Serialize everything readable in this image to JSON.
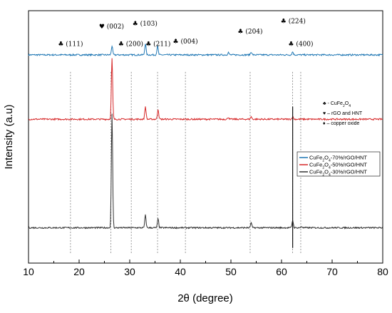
{
  "chart_data": {
    "type": "line",
    "xlabel": "2θ (degree)",
    "ylabel": "Intensity (a.u)",
    "xlim": [
      10,
      80
    ],
    "x_ticks": [
      "10",
      "20",
      "30",
      "40",
      "50",
      "60",
      "70",
      "80"
    ],
    "y_ticks": "none",
    "grid": false,
    "series": [
      {
        "name": "CuFe2O4-70%/rGO/HNT",
        "name_base": "CuFe",
        "name_sub1": "2",
        "name_mid": "O",
        "name_sub2": "4",
        "name_tail": "-70%/rGO/HNT",
        "color": "#1f77b4",
        "baseline": 0.825,
        "peaks": [
          {
            "x": 26.5,
            "h": 0.035
          },
          {
            "x": 33.1,
            "h": 0.045
          },
          {
            "x": 35.5,
            "h": 0.035
          },
          {
            "x": 49.5,
            "h": 0.01
          },
          {
            "x": 54.0,
            "h": 0.012
          },
          {
            "x": 62.2,
            "h": 0.012
          }
        ]
      },
      {
        "name": "CuFe2O4-50%/rGO/HNT",
        "name_base": "CuFe",
        "name_sub1": "2",
        "name_mid": "O",
        "name_sub2": "4",
        "name_tail": "-50%/rGO/HNT",
        "color": "#d62728",
        "baseline": 0.57,
        "peaks": [
          {
            "x": 26.5,
            "h": 0.24
          },
          {
            "x": 33.1,
            "h": 0.05
          },
          {
            "x": 35.6,
            "h": 0.04
          },
          {
            "x": 49.5,
            "h": 0.008
          },
          {
            "x": 54.0,
            "h": 0.01
          },
          {
            "x": 62.2,
            "h": 0.01
          }
        ]
      },
      {
        "name": "CuFe2O4-30%/rGO/HNT",
        "name_base": "CuFe",
        "name_sub1": "2",
        "name_mid": "O",
        "name_sub2": "4",
        "name_tail": "-30%/rGO/HNT",
        "color": "#333333",
        "baseline": 0.14,
        "peaks": [
          {
            "x": 26.5,
            "h": 0.45
          },
          {
            "x": 33.1,
            "h": 0.05
          },
          {
            "x": 35.6,
            "h": 0.035
          },
          {
            "x": 54.0,
            "h": 0.02
          },
          {
            "x": 62.2,
            "h": 0.03
          },
          {
            "x": 64.0,
            "h": 0.005
          }
        ]
      }
    ],
    "sharp_line_x": 62.2,
    "reference_lines_x": [
      18.3,
      26.3,
      30.3,
      35.5,
      41.0,
      53.8,
      62.2,
      63.8
    ],
    "peak_labels": [
      {
        "symbol": "♣",
        "text": "(111)",
        "x": 18.3,
        "level": 0.86
      },
      {
        "symbol": "♥",
        "text": "(002)",
        "x": 26.4,
        "level": 0.93
      },
      {
        "symbol": "♣",
        "text": "(200)",
        "x": 30.2,
        "level": 0.86
      },
      {
        "symbol": "♣",
        "text": "(103)",
        "x": 33.0,
        "level": 0.94
      },
      {
        "symbol": "♣",
        "text": "(211)",
        "x": 35.6,
        "level": 0.86
      },
      {
        "symbol": "♣",
        "text": "(004)",
        "x": 41.0,
        "level": 0.87
      },
      {
        "symbol": "♣",
        "text": "(204)",
        "x": 53.8,
        "level": 0.91
      },
      {
        "symbol": "♣",
        "text": "(224)",
        "x": 62.3,
        "level": 0.95
      },
      {
        "symbol": "♣",
        "text": "(400)",
        "x": 63.8,
        "level": 0.86
      }
    ],
    "notes": [
      {
        "symbol": "♣",
        "text_base": "- CuFe",
        "sub1": "2",
        "mid": "O",
        "sub2": "4"
      },
      {
        "symbol": "♥",
        "text_base": "– rGO and HNT",
        "sub1": "",
        "mid": "",
        "sub2": ""
      },
      {
        "symbol": "♦",
        "text_base": "– copper oxide",
        "sub1": "",
        "mid": "",
        "sub2": ""
      }
    ],
    "legend_position": "center-right"
  }
}
